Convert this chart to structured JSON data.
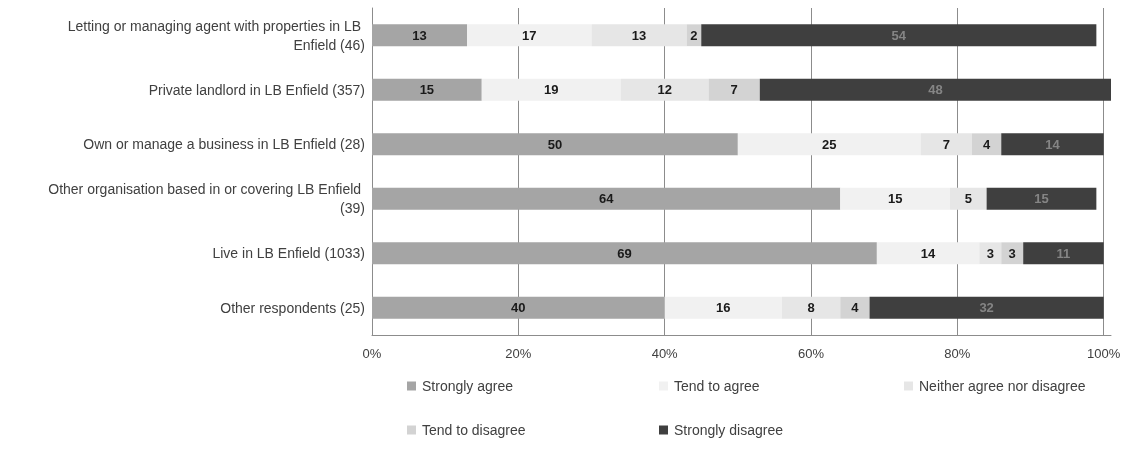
{
  "chart_data": {
    "type": "bar",
    "orientation": "horizontal",
    "stacked": true,
    "categories": [
      "Letting or managing agent with properties in LB Enfield (46)",
      "Private landlord in LB Enfield (357)",
      "Own or manage a business in LB Enfield (28)",
      "Other organisation based in or covering LB Enfield (39)",
      "Live in LB Enfield (1033)",
      "Other respondents (25)"
    ],
    "series": [
      {
        "name": "Strongly agree",
        "color": "#a5a5a5",
        "values": [
          13,
          15,
          50,
          64,
          69,
          40
        ]
      },
      {
        "name": "Tend to agree",
        "color": "#f1f1f1",
        "values": [
          17,
          19,
          25,
          15,
          14,
          16
        ]
      },
      {
        "name": "Neither agree nor disagree",
        "color": "#e6e6e6",
        "values": [
          13,
          12,
          7,
          5,
          3,
          8
        ]
      },
      {
        "name": "Tend to disagree",
        "color": "#d3d3d3",
        "values": [
          2,
          7,
          4,
          null,
          3,
          4
        ]
      },
      {
        "name": "Strongly disagree",
        "color": "#3f3f3f",
        "values": [
          54,
          48,
          14,
          15,
          11,
          32
        ]
      }
    ],
    "xlim": [
      0,
      101
    ],
    "xticks": [
      {
        "value": 0,
        "label": "0%"
      },
      {
        "value": 20,
        "label": "20%"
      },
      {
        "value": 40,
        "label": "40%"
      },
      {
        "value": 60,
        "label": "60%"
      },
      {
        "value": 80,
        "label": "80%"
      },
      {
        "value": 100,
        "label": "100%"
      }
    ],
    "grid": "x",
    "legend": "bottom",
    "data_labels": true
  }
}
